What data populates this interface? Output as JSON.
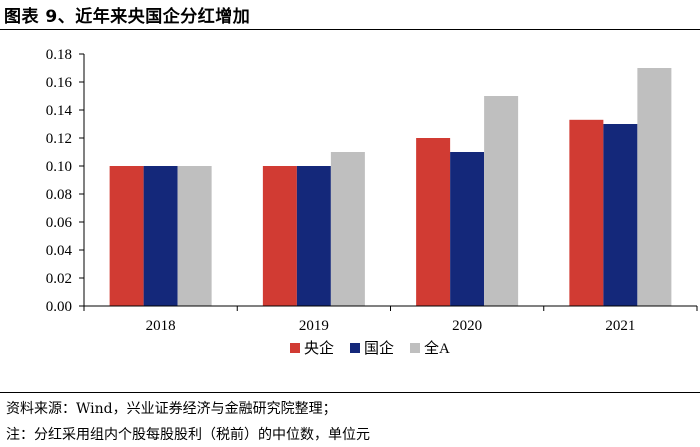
{
  "title": "图表 9、近年来央国企分红增加",
  "source": "资料来源：Wind，兴业证券经济与金融研究院整理；",
  "note": "注：分红采用组内个股每股股利（税前）的中位数，单位元",
  "chart_data": {
    "type": "bar",
    "categories": [
      "2018",
      "2019",
      "2020",
      "2021"
    ],
    "series": [
      {
        "name": "央企",
        "values": [
          0.1,
          0.1,
          0.12,
          0.133
        ],
        "color": "#d13b33"
      },
      {
        "name": "国企",
        "values": [
          0.1,
          0.1,
          0.11,
          0.13
        ],
        "color": "#14287a"
      },
      {
        "name": "全A",
        "values": [
          0.1,
          0.11,
          0.15,
          0.17
        ],
        "color": "#bfbfbf"
      }
    ],
    "ylim": [
      0,
      0.18
    ],
    "yticks": [
      "0.00",
      "0.02",
      "0.04",
      "0.06",
      "0.08",
      "0.10",
      "0.12",
      "0.14",
      "0.16",
      "0.18"
    ],
    "legend_position": "bottom-center"
  }
}
